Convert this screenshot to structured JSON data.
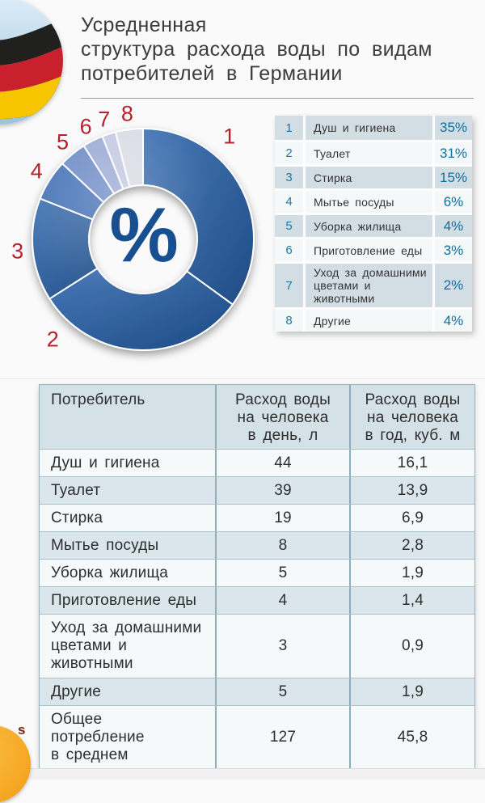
{
  "header": {
    "title_lines": [
      "Усредненная",
      "структура расхода воды по видам",
      "потребителей в Германии"
    ]
  },
  "chart": {
    "center_symbol": "%"
  },
  "chart_data": {
    "type": "pie",
    "donut": true,
    "title": "Усредненная структура расхода воды по видам потребителей в Германии",
    "categories": [
      "Душ и гигиена",
      "Туалет",
      "Стирка",
      "Мытье посуды",
      "Уборка жилища",
      "Приготовление еды",
      "Уход за домашними цветами и животными",
      "Другие"
    ],
    "values": [
      35,
      31,
      15,
      6,
      4,
      3,
      2,
      4
    ],
    "unit": "%",
    "labels": [
      "1",
      "2",
      "3",
      "4",
      "5",
      "6",
      "7",
      "8"
    ],
    "colors": [
      "#27558f",
      "#27558f",
      "#27558f",
      "#3e6cb2",
      "#6585c4",
      "#96a5d3",
      "#bfc6e0",
      "#d8dae4"
    ],
    "label_color": "#b5222d",
    "start_angle": "top",
    "direction": "clockwise"
  },
  "legend": {
    "rows": [
      {
        "num": "1",
        "label": "Душ и гигиена",
        "pct": "35%"
      },
      {
        "num": "2",
        "label": "Туалет",
        "pct": "31%"
      },
      {
        "num": "3",
        "label": "Стирка",
        "pct": "15%"
      },
      {
        "num": "4",
        "label": "Мытье посуды",
        "pct": "6%"
      },
      {
        "num": "5",
        "label": "Уборка жилища",
        "pct": "4%"
      },
      {
        "num": "6",
        "label": "Приготовление еды",
        "pct": "3%"
      },
      {
        "num": "7",
        "label": "Уход за домашними цветами и животными",
        "pct": "2%"
      },
      {
        "num": "8",
        "label": "Другие",
        "pct": "4%"
      }
    ]
  },
  "table": {
    "headers": [
      "Потребитель",
      "Расход воды\nна человека\nв день, л",
      "Расход воды\nна человека\nв год, куб. м"
    ],
    "rows": [
      {
        "name": "Душ и гигиена",
        "per_day": "44",
        "per_year": "16,1"
      },
      {
        "name": "Туалет",
        "per_day": "39",
        "per_year": "13,9"
      },
      {
        "name": "Стирка",
        "per_day": "19",
        "per_year": "6,9"
      },
      {
        "name": "Мытье посуды",
        "per_day": "8",
        "per_year": "2,8"
      },
      {
        "name": "Уборка жилища",
        "per_day": "5",
        "per_year": "1,9"
      },
      {
        "name": "Приготовление еды",
        "per_day": "4",
        "per_year": "1,4"
      },
      {
        "name": "Уход за домашними\nцветами и\nживотными",
        "per_day": "3",
        "per_year": "0,9"
      },
      {
        "name": "Другие",
        "per_day": "5",
        "per_year": "1,9"
      },
      {
        "name": "Общее\nпотребление\nв среднем",
        "per_day": "127",
        "per_year": "45,8"
      }
    ]
  },
  "logo": {
    "letter": "s"
  }
}
